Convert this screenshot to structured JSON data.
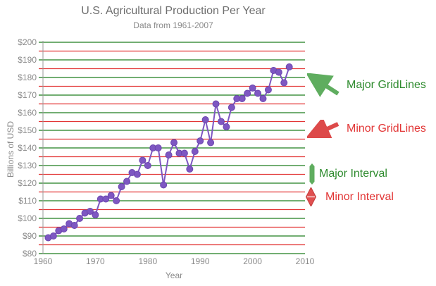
{
  "header": {
    "title": "U.S. Agricultural Production Per Year",
    "subtitle": "Data from 1961-2007"
  },
  "chart_data": {
    "type": "line",
    "title": "U.S. Agricultural Production Per Year",
    "subtitle": "Data from 1961-2007",
    "xlabel": "Year",
    "ylabel": "Billions of USD",
    "xlim": [
      1960,
      2010
    ],
    "ylim": [
      80,
      200
    ],
    "x_ticks": [
      1960,
      1970,
      1980,
      1990,
      2000,
      2010
    ],
    "y_tick_prefix": "$",
    "y_major_interval": 10,
    "y_minor_interval": 5,
    "grid": {
      "major_gridline_color": "#1f7e1f",
      "minor_gridline_color": "#e23636",
      "axis_line_color": "#999999"
    },
    "legend_position": "none",
    "series": [
      {
        "name": "U.S. Agricultural Production",
        "color": "#7e57c2",
        "marker": "circle",
        "x": [
          1961,
          1962,
          1963,
          1964,
          1965,
          1966,
          1967,
          1968,
          1969,
          1970,
          1971,
          1972,
          1973,
          1974,
          1975,
          1976,
          1977,
          1978,
          1979,
          1980,
          1981,
          1982,
          1983,
          1984,
          1985,
          1986,
          1987,
          1988,
          1989,
          1990,
          1991,
          1992,
          1993,
          1994,
          1995,
          1996,
          1997,
          1998,
          1999,
          2000,
          2001,
          2002,
          2003,
          2004,
          2005,
          2006,
          2007
        ],
        "values": [
          89,
          90,
          93,
          94,
          97,
          96,
          100,
          103,
          104,
          102,
          111,
          111,
          113,
          110,
          118,
          121,
          126,
          125,
          133,
          130,
          140,
          140,
          119,
          136,
          143,
          137,
          137,
          128,
          138,
          144,
          156,
          143,
          165,
          155,
          152,
          163,
          168,
          168,
          171,
          174,
          171,
          168,
          173,
          184,
          183,
          177,
          186
        ]
      }
    ]
  },
  "annotations": [
    {
      "label": "Major GridLines",
      "icon": "arrow-up-left",
      "color": "#2e8b2e"
    },
    {
      "label": "Minor GridLines",
      "icon": "arrow-down-left",
      "color": "#e23636"
    },
    {
      "label": "Major Interval",
      "icon": "major-interval-bar",
      "color": "#2e8b2e"
    },
    {
      "label": "Minor Interval",
      "icon": "minor-interval-diamond",
      "color": "#e23636"
    }
  ]
}
